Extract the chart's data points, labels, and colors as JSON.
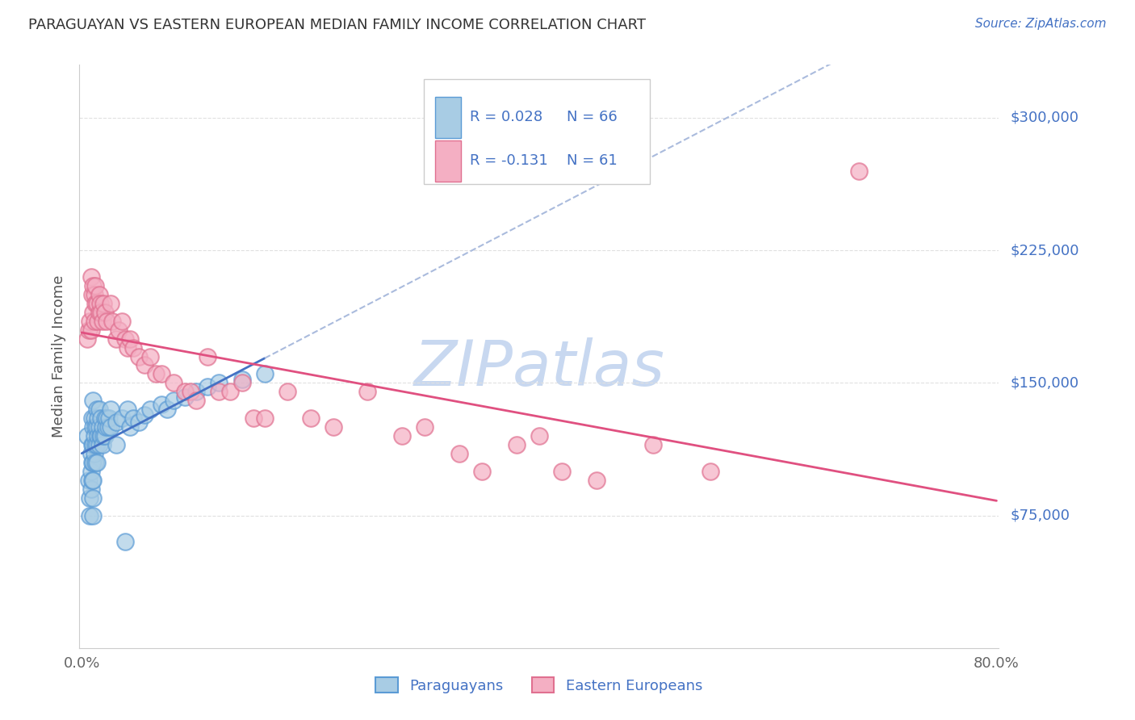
{
  "title": "PARAGUAYAN VS EASTERN EUROPEAN MEDIAN FAMILY INCOME CORRELATION CHART",
  "source": "Source: ZipAtlas.com",
  "ylabel": "Median Family Income",
  "legend_paraguayan": "Paraguayans",
  "legend_eastern": "Eastern Europeans",
  "r_paraguayan": 0.028,
  "n_paraguayan": 66,
  "r_eastern": -0.131,
  "n_eastern": 61,
  "watermark": "ZIPatlas",
  "ytick_labels": [
    "$75,000",
    "$150,000",
    "$225,000",
    "$300,000"
  ],
  "ytick_values": [
    75000,
    150000,
    225000,
    300000
  ],
  "ymin": 0,
  "ymax": 330000,
  "xmin": 0.0,
  "xmax": 0.8,
  "blue_fill": "#a8cce4",
  "blue_edge": "#5b9bd5",
  "pink_fill": "#f4afc3",
  "pink_edge": "#e07090",
  "blue_line_color": "#4472c4",
  "pink_line_color": "#e05080",
  "dashed_line_color": "#aabbdd",
  "title_color": "#333333",
  "source_color": "#4472c4",
  "legend_text_color": "#4472c4",
  "background_color": "#ffffff",
  "watermark_color": "#c8d8f0",
  "grid_color": "#e0e0e0",
  "paraguayan_x": [
    0.005,
    0.006,
    0.007,
    0.007,
    0.008,
    0.008,
    0.008,
    0.009,
    0.009,
    0.009,
    0.009,
    0.01,
    0.01,
    0.01,
    0.01,
    0.01,
    0.01,
    0.01,
    0.011,
    0.011,
    0.011,
    0.012,
    0.012,
    0.012,
    0.013,
    0.013,
    0.013,
    0.013,
    0.014,
    0.014,
    0.015,
    0.015,
    0.015,
    0.016,
    0.017,
    0.017,
    0.018,
    0.018,
    0.019,
    0.02,
    0.02,
    0.021,
    0.022,
    0.023,
    0.024,
    0.025,
    0.025,
    0.03,
    0.03,
    0.035,
    0.038,
    0.04,
    0.042,
    0.045,
    0.05,
    0.055,
    0.06,
    0.07,
    0.075,
    0.08,
    0.09,
    0.1,
    0.11,
    0.12,
    0.14,
    0.16
  ],
  "paraguayan_y": [
    120000,
    95000,
    85000,
    75000,
    110000,
    100000,
    90000,
    130000,
    115000,
    105000,
    95000,
    140000,
    125000,
    115000,
    105000,
    95000,
    85000,
    75000,
    130000,
    120000,
    110000,
    125000,
    115000,
    105000,
    135000,
    125000,
    115000,
    105000,
    130000,
    120000,
    135000,
    125000,
    115000,
    120000,
    130000,
    120000,
    125000,
    115000,
    120000,
    130000,
    120000,
    125000,
    130000,
    125000,
    130000,
    135000,
    125000,
    128000,
    115000,
    130000,
    60000,
    135000,
    125000,
    130000,
    128000,
    132000,
    135000,
    138000,
    135000,
    140000,
    142000,
    145000,
    148000,
    150000,
    152000,
    155000
  ],
  "eastern_x": [
    0.005,
    0.006,
    0.007,
    0.008,
    0.008,
    0.009,
    0.01,
    0.01,
    0.011,
    0.011,
    0.012,
    0.012,
    0.013,
    0.014,
    0.015,
    0.015,
    0.016,
    0.017,
    0.018,
    0.019,
    0.02,
    0.022,
    0.025,
    0.027,
    0.03,
    0.032,
    0.035,
    0.038,
    0.04,
    0.042,
    0.045,
    0.05,
    0.055,
    0.06,
    0.065,
    0.07,
    0.08,
    0.09,
    0.095,
    0.1,
    0.11,
    0.12,
    0.13,
    0.14,
    0.15,
    0.16,
    0.18,
    0.2,
    0.22,
    0.25,
    0.28,
    0.3,
    0.33,
    0.35,
    0.38,
    0.4,
    0.42,
    0.45,
    0.5,
    0.55,
    0.68
  ],
  "eastern_y": [
    175000,
    180000,
    185000,
    180000,
    210000,
    200000,
    205000,
    190000,
    200000,
    185000,
    195000,
    205000,
    195000,
    185000,
    190000,
    200000,
    195000,
    190000,
    185000,
    195000,
    190000,
    185000,
    195000,
    185000,
    175000,
    180000,
    185000,
    175000,
    170000,
    175000,
    170000,
    165000,
    160000,
    165000,
    155000,
    155000,
    150000,
    145000,
    145000,
    140000,
    165000,
    145000,
    145000,
    150000,
    130000,
    130000,
    145000,
    130000,
    125000,
    145000,
    120000,
    125000,
    110000,
    100000,
    115000,
    120000,
    100000,
    95000,
    115000,
    100000,
    270000
  ]
}
